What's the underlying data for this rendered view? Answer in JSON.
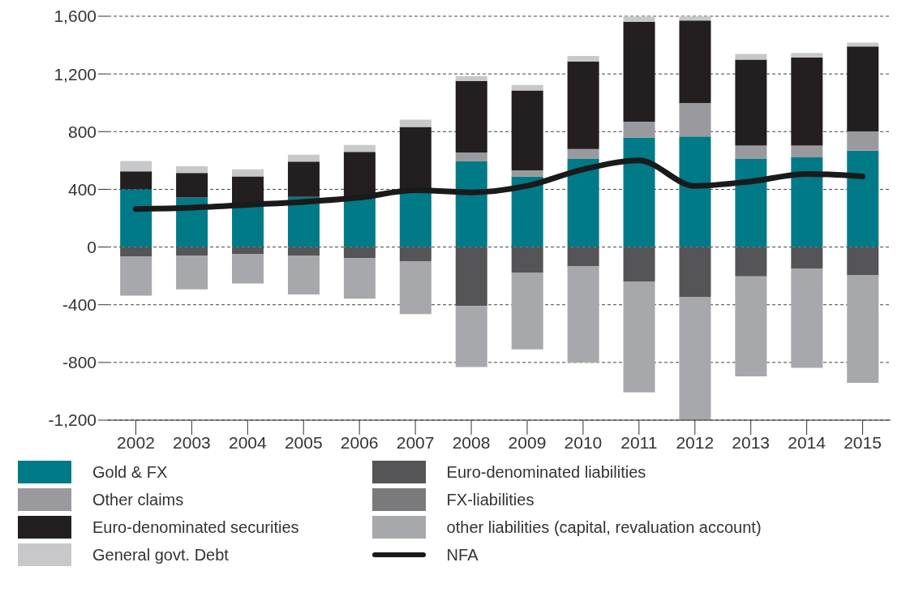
{
  "chart_data": {
    "type": "bar",
    "stacked": true,
    "categories": [
      "2002",
      "2003",
      "2004",
      "2005",
      "2006",
      "2007",
      "2008",
      "2009",
      "2010",
      "2011",
      "2012",
      "2013",
      "2014",
      "2015"
    ],
    "series": [
      {
        "name": "Gold & FX",
        "color": "#007a87",
        "values": [
          400,
          343,
          287,
          347,
          343,
          394,
          594,
          490,
          610,
          759,
          766,
          610,
          621,
          668
        ]
      },
      {
        "name": "Other claims",
        "color": "#9a9a9e",
        "values": [
          0,
          0,
          0,
          0,
          0,
          0,
          62,
          42,
          69,
          110,
          233,
          93,
          82,
          133
        ]
      },
      {
        "name": "Euro-denominated securities",
        "color": "#231f20",
        "values": [
          125,
          170,
          202,
          245,
          317,
          438,
          496,
          554,
          608,
          693,
          572,
          596,
          611,
          589
        ]
      },
      {
        "name": "General govt. Debt",
        "color": "#c8c8ca",
        "values": [
          71,
          47,
          50,
          48,
          47,
          51,
          34,
          37,
          37,
          35,
          27,
          40,
          31,
          27
        ]
      },
      {
        "name": "Euro-denominated liabilities",
        "color": "#555557",
        "values": [
          -67,
          -61,
          -50,
          -61,
          -75,
          -101,
          -408,
          -180,
          -134,
          -238,
          -346,
          -203,
          -149,
          -197
        ]
      },
      {
        "name": "FX-liabilities",
        "color": "#7a7a7c",
        "values": [
          0,
          0,
          0,
          0,
          0,
          0,
          0,
          0,
          0,
          0,
          0,
          0,
          0,
          0
        ]
      },
      {
        "name": "other liabilities (capital, revaluation account)",
        "color": "#a7a8ab",
        "values": [
          -270,
          -232,
          -202,
          -268,
          -283,
          -364,
          -424,
          -530,
          -667,
          -770,
          -854,
          -693,
          -689,
          -744
        ]
      },
      {
        "name": "NFA",
        "type": "line",
        "color": "#1a1a1a",
        "values": [
          263,
          273,
          293,
          313,
          343,
          394,
          379,
          424,
          538,
          600,
          424,
          455,
          507,
          490
        ]
      }
    ],
    "ylim": [
      -1200,
      1600
    ],
    "yticks": [
      {
        "value": -1200,
        "label": "-1,200"
      },
      -800,
      -400,
      0,
      400,
      800,
      {
        "value": 1200,
        "label": "1,200"
      },
      {
        "value": 1600,
        "label": "1,600"
      }
    ],
    "grid": "y",
    "legend": "bottom",
    "marker": "none",
    "line_style": "solid"
  }
}
